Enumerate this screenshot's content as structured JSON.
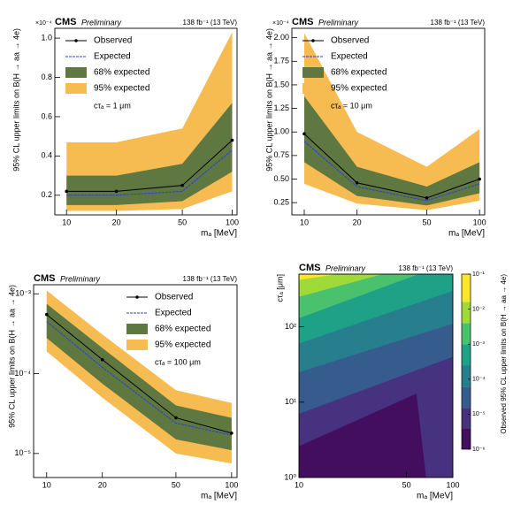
{
  "chart_data": [
    {
      "type": "line",
      "title": "CMS",
      "subtitle": "Preliminary",
      "lumi": "138 fb⁻¹ (13 TeV)",
      "annotation": "cτₐ = 1 μm",
      "x_label": "mₐ [MeV]",
      "y_label": "95% CL upper limits on B(H → aa → 4e)",
      "y_scale_label": "×10⁻⁴",
      "x": [
        10,
        20,
        50,
        100
      ],
      "xlim": [
        8.5,
        107
      ],
      "xticks": [
        10,
        20,
        50,
        100
      ],
      "x_log": true,
      "ylim": [
        0.1,
        1.05
      ],
      "yticks": [
        0.2,
        0.4,
        0.6,
        0.8,
        {
          "value": 1,
          "label": "1.0"
        }
      ],
      "y_log": false,
      "legend": "upper left",
      "series": [
        {
          "name": "Observed",
          "color": "#000000",
          "values": [
            0.22,
            0.22,
            0.25,
            0.48
          ]
        },
        {
          "name": "Expected",
          "color": "#2b3fd6",
          "values": [
            0.2,
            0.2,
            0.22,
            0.43
          ]
        },
        {
          "name": "68% expected",
          "color": "#5f7741",
          "low": [
            0.15,
            0.15,
            0.17,
            0.32
          ],
          "high": [
            0.3,
            0.3,
            0.36,
            0.67
          ]
        },
        {
          "name": "95% expected",
          "color": "#f6bc52",
          "low": [
            0.12,
            0.12,
            0.13,
            0.22
          ],
          "high": [
            0.47,
            0.47,
            0.54,
            1.03
          ]
        }
      ]
    },
    {
      "type": "line",
      "title": "CMS",
      "subtitle": "Preliminary",
      "lumi": "138 fb⁻¹ (13 TeV)",
      "annotation": "cτₐ = 10 μm",
      "x_label": "mₐ [MeV]",
      "y_label": "95% CL upper limits on B(H → aa → 4e)",
      "y_scale_label": "×10⁻⁴",
      "x": [
        10,
        20,
        50,
        100
      ],
      "xlim": [
        8.5,
        107
      ],
      "xticks": [
        10,
        20,
        50,
        100
      ],
      "x_log": true,
      "ylim": [
        0.12,
        2.1
      ],
      "yticks": [
        0.25,
        {
          "value": 0.5,
          "label": "0.50"
        },
        0.75,
        {
          "value": 1,
          "label": "1.00"
        },
        1.25,
        {
          "value": 1.5,
          "label": "1.50"
        },
        1.75,
        {
          "value": 2,
          "label": "2.00"
        }
      ],
      "y_log": false,
      "legend": "upper left",
      "series": [
        {
          "name": "Observed",
          "color": "#000000",
          "values": [
            0.98,
            0.46,
            0.3,
            0.5
          ]
        },
        {
          "name": "Expected",
          "color": "#2b3fd6",
          "values": [
            0.9,
            0.42,
            0.27,
            0.45
          ]
        },
        {
          "name": "68% expected",
          "color": "#5f7741",
          "low": [
            0.68,
            0.32,
            0.22,
            0.35
          ],
          "high": [
            1.38,
            0.63,
            0.42,
            0.68
          ]
        },
        {
          "name": "95% expected",
          "color": "#f6bc52",
          "low": [
            0.45,
            0.24,
            0.17,
            0.27
          ],
          "high": [
            2.05,
            1.0,
            0.63,
            1.03
          ]
        }
      ]
    },
    {
      "type": "line",
      "title": "CMS",
      "subtitle": "Preliminary",
      "lumi": "138 fb⁻¹ (13 TeV)",
      "annotation": "cτₐ = 100 μm",
      "x_label": "mₐ [MeV]",
      "y_label": "95% CL upper limits on B(H → aa → 4e)",
      "x": [
        10,
        20,
        50,
        100
      ],
      "xlim": [
        8.5,
        107
      ],
      "xticks": [
        10,
        20,
        50,
        100
      ],
      "x_log": true,
      "ylim": [
        5e-06,
        0.0013
      ],
      "yticks": [
        {
          "value": 1e-05,
          "label": "10⁻⁵"
        },
        {
          "value": 0.0001,
          "label": "10⁻⁴"
        },
        {
          "value": 0.001,
          "label": "10⁻³"
        }
      ],
      "y_log": true,
      "legend": "upper right",
      "series": [
        {
          "name": "Observed",
          "color": "#000000",
          "values": [
            0.00055,
            0.00015,
            2.8e-05,
            1.8e-05
          ]
        },
        {
          "name": "Expected",
          "color": "#2b3fd6",
          "values": [
            0.00045,
            0.00012,
            2.4e-05,
            1.7e-05
          ]
        },
        {
          "name": "68% expected",
          "color": "#5f7741",
          "low": [
            0.00028,
            7.5e-05,
            1.5e-05,
            1.1e-05
          ],
          "high": [
            0.00075,
            0.00021,
            4e-05,
            2.8e-05
          ]
        },
        {
          "name": "95% expected",
          "color": "#f6bc52",
          "low": [
            0.00019,
            5e-05,
            1e-05,
            7.5e-06
          ],
          "high": [
            0.0011,
            0.00031,
            6.2e-05,
            4.3e-05
          ]
        }
      ]
    },
    {
      "type": "contour",
      "title": "CMS",
      "subtitle": "Preliminary",
      "lumi": "138 fb⁻¹ (13 TeV)",
      "x_label": "mₐ [MeV]",
      "y_label": "cτₐ [μm]",
      "z_label": "Observed 95% CL upper limits on B(H → aa → 4e)",
      "xlim": [
        10,
        100
      ],
      "xticks": [
        10,
        50,
        100
      ],
      "x_log": true,
      "ylim": [
        1,
        500
      ],
      "yticks": [
        {
          "value": 1,
          "label": "10⁰"
        },
        {
          "value": 10,
          "label": "10¹"
        },
        {
          "value": 100,
          "label": "10²"
        }
      ],
      "y_log": true,
      "zlim": [
        1e-06,
        0.1
      ],
      "zticks": [
        {
          "value": 1e-06,
          "label": "10⁻⁶"
        },
        {
          "value": 1e-05,
          "label": "10⁻⁵"
        },
        {
          "value": 0.0001,
          "label": "10⁻⁴"
        },
        {
          "value": 0.001,
          "label": "10⁻³"
        },
        {
          "value": 0.01,
          "label": "10⁻²"
        },
        {
          "value": 0.1,
          "label": "10⁻¹"
        }
      ],
      "contours": [
        {
          "level": 1e-06,
          "color": "#440e5e",
          "x": [
            10,
            100
          ],
          "y": [
            1,
            1
          ]
        },
        {
          "level": 4e-06,
          "color": "#46327e",
          "x": [
            10,
            58,
            67,
            100
          ],
          "y": [
            2.6,
            13,
            1,
            1
          ]
        },
        {
          "level": 1.5e-05,
          "color": "#365c8d",
          "x": [
            10,
            100
          ],
          "y": [
            7,
            40
          ]
        },
        {
          "level": 6e-05,
          "color": "#277f8e",
          "x": [
            10,
            100
          ],
          "y": [
            25,
            110
          ]
        },
        {
          "level": 0.00025,
          "color": "#1fa187",
          "x": [
            10,
            100
          ],
          "y": [
            60,
            300
          ]
        },
        {
          "level": 0.001,
          "color": "#4ac16d",
          "x": [
            10,
            60
          ],
          "y": [
            130,
            500
          ]
        },
        {
          "level": 0.004,
          "color": "#a0da39",
          "x": [
            10,
            35
          ],
          "y": [
            250,
            500
          ]
        },
        {
          "level": 0.016,
          "color": "#fde725",
          "x": [
            10,
            18
          ],
          "y": [
            420,
            500
          ]
        }
      ]
    }
  ]
}
